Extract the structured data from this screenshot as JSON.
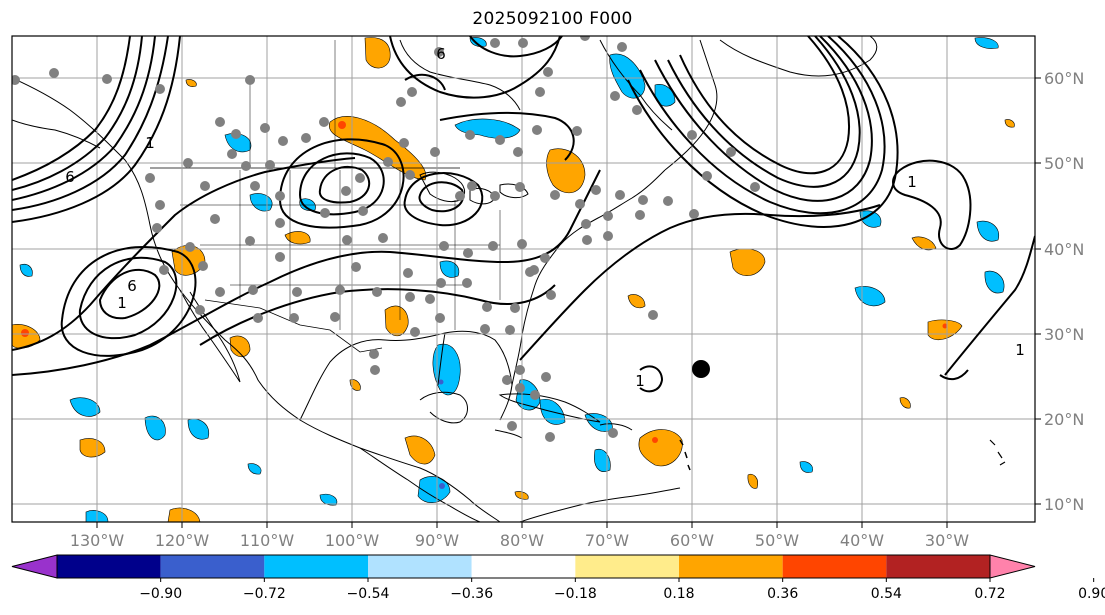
{
  "title": "2025092100 F000",
  "longitude_labels": [
    "130°W",
    "120°W",
    "110°W",
    "100°W",
    "90°W",
    "80°W",
    "70°W",
    "60°W",
    "50°W",
    "40°W",
    "30°W"
  ],
  "latitude_labels": [
    "60°N",
    "50°N",
    "40°N",
    "30°N",
    "20°N",
    "10°N"
  ],
  "colorbar": {
    "ticks": [
      "−0.90",
      "−0.72",
      "−0.54",
      "−0.36",
      "−0.18",
      "0.18",
      "0.36",
      "0.54",
      "0.72",
      "0.90"
    ],
    "colors": [
      "#9932cc",
      "#00008b",
      "#3a5fcd",
      "#00bfff",
      "#b0e2ff",
      "#ffffff",
      "#ffec8b",
      "#ffa500",
      "#ff4500",
      "#b22222",
      "#ff82ab"
    ]
  },
  "contour_labels": [
    "6",
    "1",
    "6",
    "1",
    "6",
    "1",
    "1",
    "1"
  ],
  "colors": {
    "frame": "#000000",
    "grid": "#a0a0a0",
    "observation_dots": "#808080",
    "storm_marker": "#000000",
    "positive_anomaly": "#ffa500",
    "negative_anomaly": "#00bfff"
  }
}
